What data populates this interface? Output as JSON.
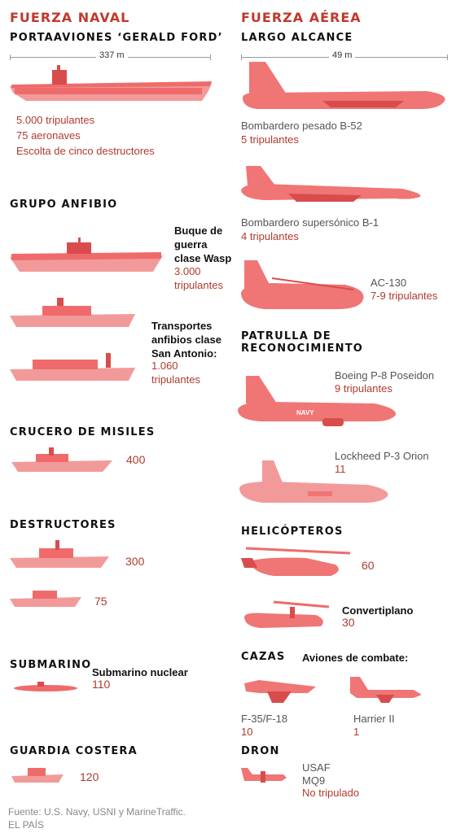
{
  "naval": {
    "heading": "FUERZA NAVAL",
    "carrier": {
      "title": "PORTAAVIONES ‘GERALD FORD’",
      "length": "337 m",
      "crew": "5.000 tripulantes",
      "aircraft": "75 aeronaves",
      "escort": "Escolta de cinco destructores"
    },
    "amphibious": {
      "title": "GRUPO ANFIBIO",
      "wasp_label": [
        "Buque de",
        "guerra",
        "clase Wasp"
      ],
      "wasp_crew": [
        "3.000",
        "tripulantes"
      ],
      "sanantonio_label": [
        "Transportes",
        "anfibios clase",
        "San Antonio:"
      ],
      "sanantonio_crew": [
        "1.060",
        "tripulantes"
      ]
    },
    "cruiser": {
      "title": "CRUCERO DE MISILES",
      "crew": "400"
    },
    "destroyers": {
      "title": "DESTRUCTORES",
      "crew_a": "300",
      "crew_b": "75"
    },
    "submarine": {
      "title": "SUBMARINO",
      "label": "Submarino nuclear",
      "crew": "110"
    },
    "coastguard": {
      "title": "GUARDIA COSTERA",
      "crew": "120"
    }
  },
  "air": {
    "heading": "FUERZA AÉREA",
    "long_range": {
      "title": "LARGO ALCANCE",
      "length": "49 m",
      "b52_label": "Bombardero pesado B-52",
      "b52_crew": "5 tripulantes",
      "b1_label": "Bombardero supersónico B-1",
      "b1_crew": "4 tripulantes",
      "ac130_label": "AC-130",
      "ac130_crew": "7-9 tripulantes"
    },
    "patrol": {
      "title": "PATRULLA DE RECONOCIMIENTO",
      "p8_label": "Boeing P-8 Poseidon",
      "p8_crew": "9 tripulantes",
      "p8_marking": "NAVY",
      "p3_label": "Lockheed P-3 Orion",
      "p3_crew": "11"
    },
    "helicopters": {
      "title": "HELICÓPTEROS",
      "heli_crew": "60",
      "tilt_label": "Convertiplano",
      "tilt_crew": "30"
    },
    "fighters": {
      "title": "CAZAS",
      "subtitle": "Aviones de combate:",
      "f35_label": "F-35/F-18",
      "f35_crew": "10",
      "harrier_label": "Harrier II",
      "harrier_crew": "1"
    },
    "drone": {
      "title": "DRON",
      "label": [
        "USAF",
        "MQ9"
      ],
      "crew": "No tripulado"
    }
  },
  "footer": {
    "source": "Fuente: U.S. Navy, USNI y MarineTraffic.",
    "outlet": "EL PAÍS"
  }
}
